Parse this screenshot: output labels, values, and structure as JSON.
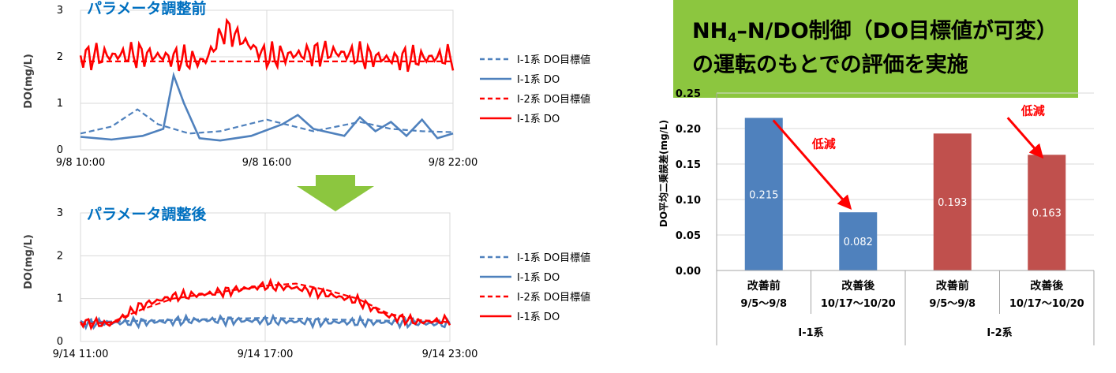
{
  "banner": {
    "line1_a": "NH",
    "line1_sub": "4",
    "line1_b": "–N/DO制御（DO目標値が可変）",
    "line2": "の運転のもとでの評価を実施"
  },
  "colors": {
    "blue": "#4f81bd",
    "red": "#ff0000",
    "bar_red": "#c0504d",
    "arrow_green": "#8cc63f"
  },
  "icons": {
    "transition": "down-arrow-icon"
  },
  "chart_data": [
    {
      "type": "line",
      "title": "パラメータ調整前",
      "ylabel": "DO(mg/L)",
      "ylim": [
        0,
        3
      ],
      "yticks": [
        "0",
        "1",
        "2",
        "3"
      ],
      "xticks": [
        "9/8 10:00",
        "9/8 16:00",
        "9/8 22:00"
      ],
      "xlim": [
        "9/8 10:00",
        "9/8 22:00"
      ],
      "series": [
        {
          "name": "Ⅰ-1系 DO目標値",
          "color": "#4f81bd",
          "style": "dashed",
          "x": [
            "9/8 10:00",
            "9/8 11:00",
            "9/8 11:50",
            "9/8 12:30",
            "9/8 13:30",
            "9/8 14:30",
            "9/8 16:00",
            "9/8 17:30",
            "9/8 19:00",
            "9/8 20:00",
            "9/8 21:00",
            "9/8 22:00"
          ],
          "values": [
            0.35,
            0.5,
            0.87,
            0.55,
            0.35,
            0.4,
            0.65,
            0.4,
            0.6,
            0.45,
            0.4,
            0.38
          ]
        },
        {
          "name": "Ⅰ-1系 DO",
          "color": "#4f81bd",
          "style": "solid",
          "x": [
            "9/8 10:00",
            "9/8 11:00",
            "9/8 12:00",
            "9/8 12:40",
            "9/8 13:00",
            "9/8 13:20",
            "9/8 13:50",
            "9/8 14:30",
            "9/8 15:30",
            "9/8 16:30",
            "9/8 17:00",
            "9/8 17:30",
            "9/8 18:30",
            "9/8 19:00",
            "9/8 19:30",
            "9/8 20:00",
            "9/8 20:30",
            "9/8 21:00",
            "9/8 21:30",
            "9/8 22:00"
          ],
          "values": [
            0.28,
            0.22,
            0.3,
            0.45,
            1.6,
            1.0,
            0.25,
            0.2,
            0.3,
            0.55,
            0.75,
            0.45,
            0.3,
            0.7,
            0.4,
            0.6,
            0.3,
            0.65,
            0.25,
            0.35
          ]
        },
        {
          "name": "Ⅰ-2系 DO目標値",
          "color": "#ff0000",
          "style": "dashed",
          "x": [
            "9/8 10:00",
            "9/8 22:00"
          ],
          "values": [
            1.9,
            1.9
          ]
        },
        {
          "name": "Ⅰ-1系 DO",
          "color": "#ff0000",
          "style": "solid",
          "x": [
            "9/8 10:00",
            "9/8 12:00",
            "9/8 14:00",
            "9/8 14:40",
            "9/8 16:00",
            "9/8 18:00",
            "9/8 20:00",
            "9/8 22:00"
          ],
          "values": [
            2.0,
            2.05,
            1.9,
            2.6,
            2.0,
            2.1,
            1.95,
            2.0
          ],
          "oscillation_amplitude": 0.32
        }
      ]
    },
    {
      "type": "line",
      "title": "パラメータ調整後",
      "ylabel": "DO(mg/L)",
      "ylim": [
        0,
        3
      ],
      "yticks": [
        "0",
        "1",
        "2",
        "3"
      ],
      "xticks": [
        "9/14 11:00",
        "9/14 17:00",
        "9/14 23:00"
      ],
      "xlim": [
        "9/14 11:00",
        "9/14 23:00"
      ],
      "series": [
        {
          "name": "Ⅰ-1系 DO目標値",
          "color": "#4f81bd",
          "style": "dashed",
          "x": [
            "9/14 11:00",
            "9/14 14:00",
            "9/14 17:00",
            "9/14 20:00",
            "9/14 23:00"
          ],
          "values": [
            0.45,
            0.5,
            0.55,
            0.5,
            0.45
          ]
        },
        {
          "name": "Ⅰ-1系 DO",
          "color": "#4f81bd",
          "style": "solid",
          "x": [
            "9/14 11:00",
            "9/14 13:00",
            "9/14 15:00",
            "9/14 17:00",
            "9/14 19:00",
            "9/14 21:00",
            "9/14 23:00"
          ],
          "values": [
            0.42,
            0.45,
            0.5,
            0.48,
            0.45,
            0.45,
            0.4
          ],
          "oscillation_amplitude": 0.12
        },
        {
          "name": "Ⅰ-2系 DO目標値",
          "color": "#ff0000",
          "style": "dashed",
          "x": [
            "9/14 11:00",
            "9/14 12:00",
            "9/14 13:00",
            "9/14 14:00",
            "9/14 15:00",
            "9/14 16:00",
            "9/14 17:00",
            "9/14 18:00",
            "9/14 19:00",
            "9/14 20:00",
            "9/14 21:00",
            "9/14 22:00",
            "9/14 23:00"
          ],
          "values": [
            0.4,
            0.45,
            0.75,
            1.0,
            1.1,
            1.2,
            1.3,
            1.35,
            1.2,
            1.0,
            0.65,
            0.5,
            0.45
          ]
        },
        {
          "name": "Ⅰ-1系 DO",
          "color": "#ff0000",
          "style": "solid",
          "x": [
            "9/14 11:00",
            "9/14 12:00",
            "9/14 13:00",
            "9/14 14:00",
            "9/14 15:00",
            "9/14 16:00",
            "9/14 17:00",
            "9/14 18:00",
            "9/14 19:00",
            "9/14 20:00",
            "9/14 21:00",
            "9/14 22:00",
            "9/14 23:00"
          ],
          "values": [
            0.45,
            0.4,
            0.85,
            1.05,
            1.1,
            1.2,
            1.3,
            1.25,
            1.1,
            0.95,
            0.6,
            0.45,
            0.5
          ],
          "oscillation_amplitude": 0.13
        }
      ]
    },
    {
      "type": "bar",
      "ylabel": "DO平均二乗誤差(mg/L)",
      "ylim": [
        0,
        0.25
      ],
      "yticks": [
        "0.00",
        "0.05",
        "0.10",
        "0.15",
        "0.20",
        "0.25"
      ],
      "categories": [
        {
          "label": "改善前",
          "period": "9/5～9/8",
          "group": "I-1系",
          "value": 0.215,
          "value_label": "0.215",
          "color": "#4f81bd"
        },
        {
          "label": "改善後",
          "period": "10/17～10/20",
          "group": "I-1系",
          "value": 0.082,
          "value_label": "0.082",
          "color": "#4f81bd"
        },
        {
          "label": "改善前",
          "period": "9/5～9/8",
          "group": "I-2系",
          "value": 0.193,
          "value_label": "0.193",
          "color": "#c0504d"
        },
        {
          "label": "改善後",
          "period": "10/17～10/20",
          "group": "I-2系",
          "value": 0.163,
          "value_label": "0.163",
          "color": "#c0504d"
        }
      ],
      "groups": [
        "I-1系",
        "I-2系"
      ],
      "annotations": [
        {
          "text": "低減",
          "group": "I-1系"
        },
        {
          "text": "低減",
          "group": "I-2系"
        }
      ]
    }
  ]
}
